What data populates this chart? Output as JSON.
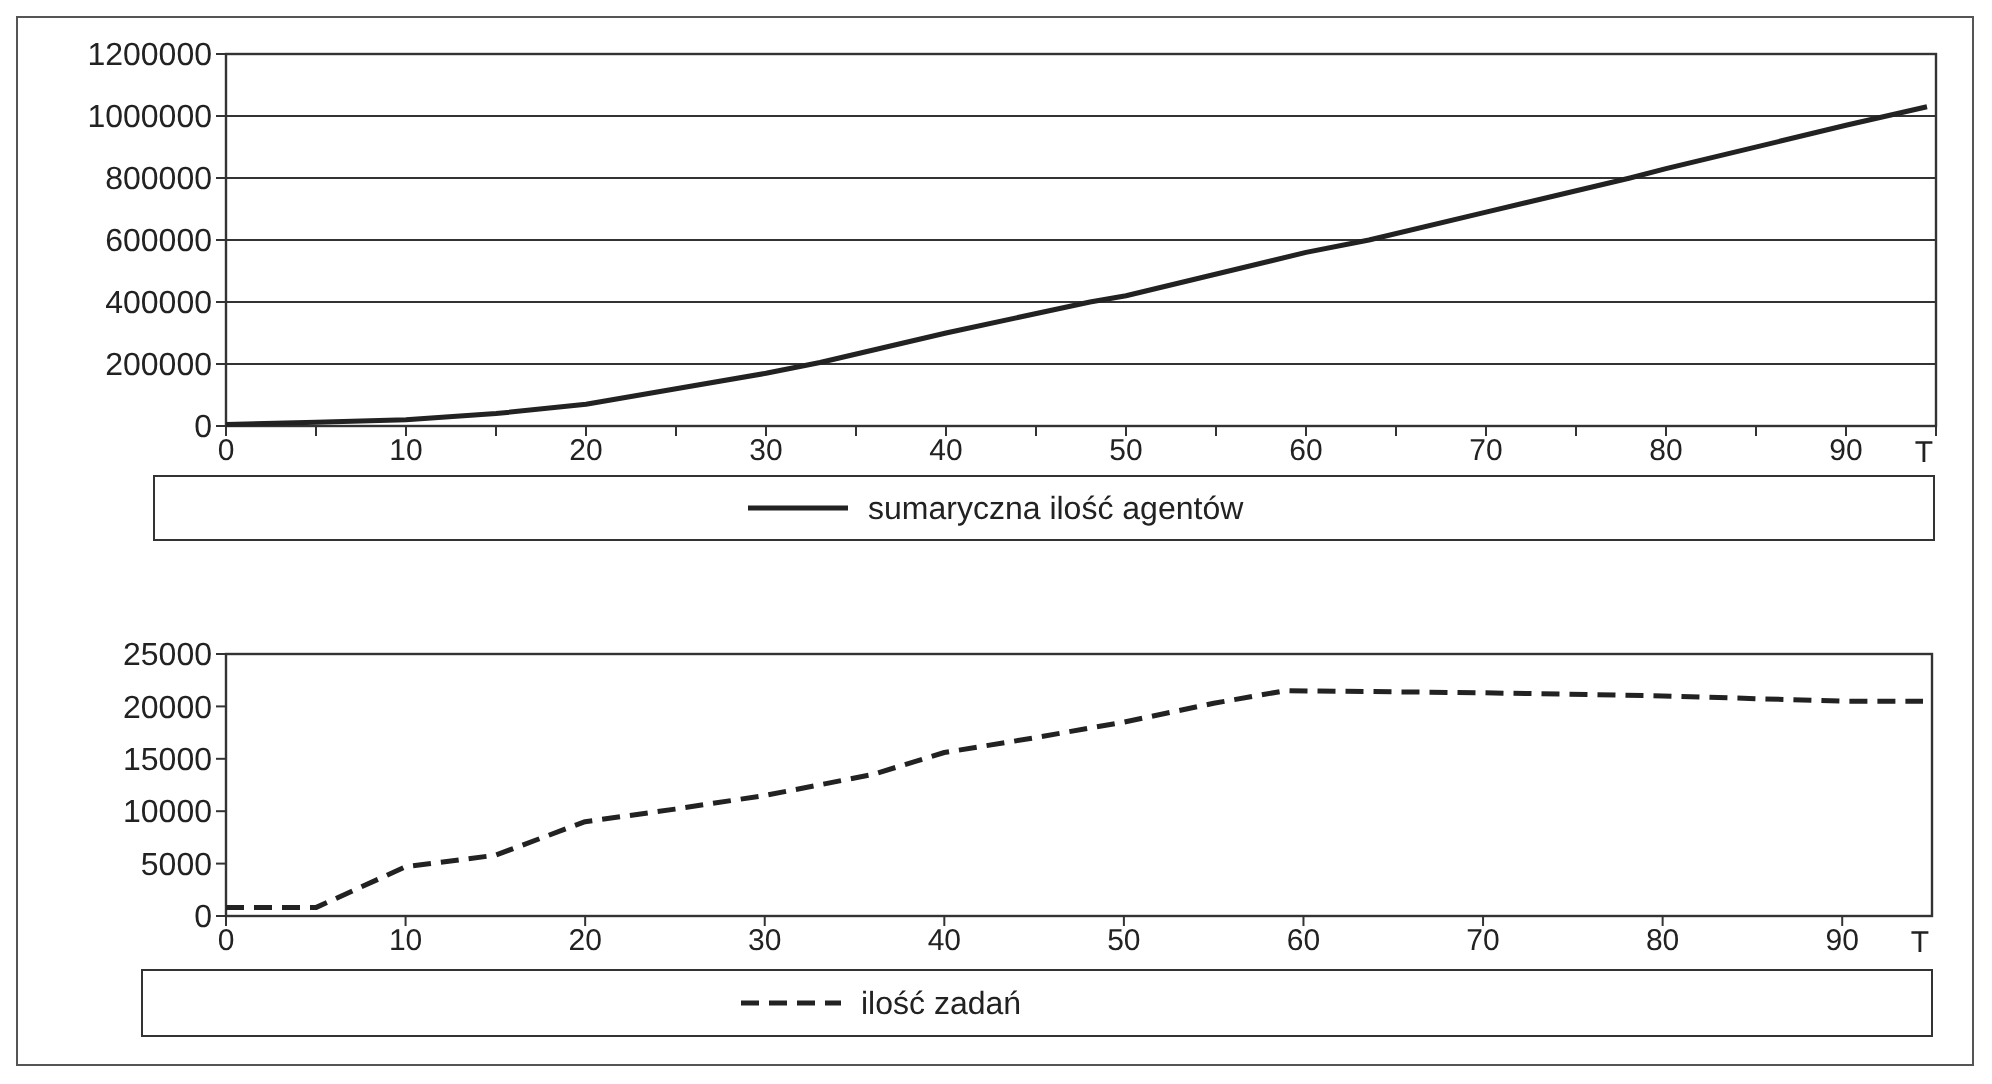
{
  "chart_data": [
    {
      "type": "line",
      "xlabel": "T",
      "x": [
        0,
        5,
        10,
        15,
        20,
        25,
        30,
        33,
        40,
        48,
        50,
        60,
        63.5,
        70,
        78,
        80,
        90,
        94.5
      ],
      "series": [
        {
          "name": "sumaryczna ilość agentów",
          "color": "#222222",
          "line_style": "solid",
          "values": [
            5000,
            12000,
            20000,
            40000,
            70000,
            120000,
            170000,
            205000,
            300000,
            400000,
            420000,
            560000,
            600000,
            690000,
            800000,
            830000,
            970000,
            1030000
          ]
        }
      ],
      "xlim": [
        0,
        95
      ],
      "xticks": [
        0,
        {
          "value": 5,
          "label": null
        },
        10,
        {
          "value": 15,
          "label": null
        },
        20,
        {
          "value": 25,
          "label": null
        },
        30,
        {
          "value": 35,
          "label": null
        },
        40,
        {
          "value": 45,
          "label": null
        },
        50,
        {
          "value": 55,
          "label": null
        },
        60,
        {
          "value": 65,
          "label": null
        },
        70,
        {
          "value": 75,
          "label": null
        },
        80,
        {
          "value": 85,
          "label": null
        },
        90,
        {
          "value": 95,
          "label": null
        }
      ],
      "ylim": [
        0,
        1200000
      ],
      "yticks": [
        0,
        200000,
        400000,
        600000,
        800000,
        1000000,
        1200000
      ],
      "grid": "y",
      "legend": "bottom",
      "marker": "none"
    },
    {
      "type": "line",
      "xlabel": "T",
      "x": [
        0,
        5,
        10,
        15,
        20,
        25,
        30,
        36,
        40,
        45,
        50,
        55,
        59,
        70,
        80,
        90,
        94.5
      ],
      "series": [
        {
          "name": "ilość zadań",
          "color": "#222222",
          "line_style": "dashed",
          "values": [
            800,
            800,
            4700,
            5800,
            9000,
            10200,
            11500,
            13500,
            15600,
            17000,
            18500,
            20300,
            21500,
            21300,
            21000,
            20500,
            20500
          ]
        }
      ],
      "xlim": [
        0,
        95
      ],
      "xticks": [
        0,
        10,
        20,
        30,
        40,
        50,
        60,
        70,
        80,
        90
      ],
      "ylim": [
        0,
        25000
      ],
      "yticks": [
        0,
        5000,
        10000,
        15000,
        20000,
        25000
      ],
      "grid": false,
      "legend": "bottom",
      "marker": "none"
    }
  ]
}
